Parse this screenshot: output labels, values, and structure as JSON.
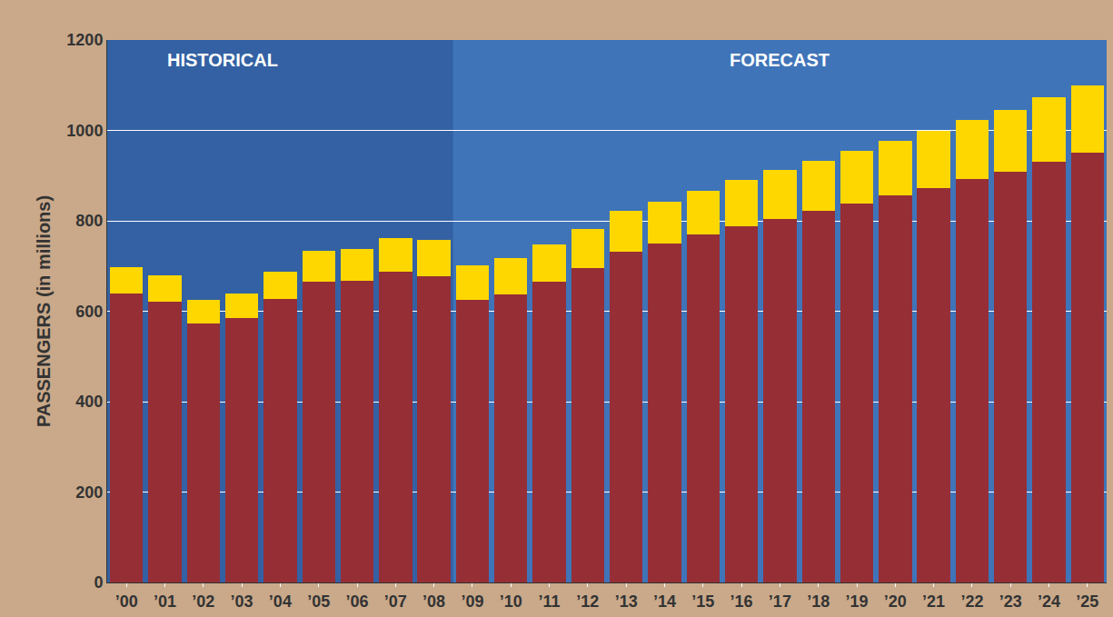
{
  "chart_data": {
    "type": "bar",
    "stacked": true,
    "y_label": "PASSENGERS (in millions)",
    "annotations": [
      "HISTORICAL",
      "FORECAST"
    ],
    "categories": [
      "’00",
      "’01",
      "’02",
      "’03",
      "’04",
      "’05",
      "’06",
      "’07",
      "’08",
      "’09",
      "’10",
      "’11",
      "’12",
      "’13",
      "’14",
      "’15",
      "’16",
      "’17",
      "’18",
      "’19",
      "’20",
      "’21",
      "’22",
      "’23",
      "’24",
      "’25"
    ],
    "series": [
      {
        "color": "#962e36",
        "values": [
          640,
          622,
          573,
          585,
          627,
          665,
          667,
          688,
          678,
          625,
          638,
          665,
          695,
          732,
          750,
          770,
          788,
          805,
          822,
          838,
          857,
          873,
          893,
          908,
          930,
          950
        ]
      },
      {
        "color": "#ffd700",
        "values": [
          57,
          58,
          52,
          55,
          60,
          68,
          71,
          74,
          79,
          77,
          79,
          82,
          87,
          90,
          93,
          96,
          102,
          107,
          111,
          117,
          119,
          127,
          130,
          137,
          143,
          150
        ]
      }
    ],
    "ylim": [
      0,
      1200
    ],
    "yticks": [
      0,
      200,
      400,
      600,
      800,
      1000,
      1200
    ],
    "grid": true
  }
}
